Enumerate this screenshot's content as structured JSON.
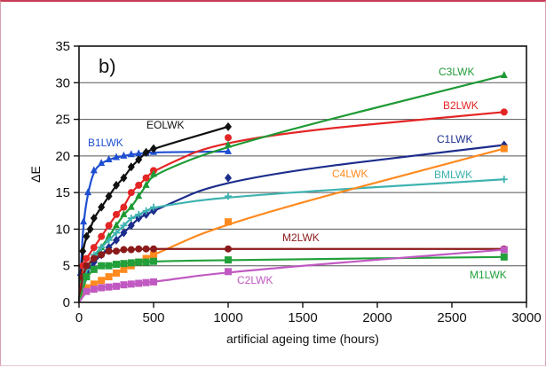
{
  "chart_data": {
    "type": "line",
    "panel_label": "b)",
    "xlabel": "artificial ageing time (hours)",
    "ylabel": "ΔE",
    "xlim": [
      0,
      3000
    ],
    "ylim": [
      0,
      35
    ],
    "xticks": [
      0,
      500,
      1000,
      1500,
      2000,
      2500,
      3000
    ],
    "yticks": [
      0,
      5,
      10,
      15,
      20,
      25,
      30,
      35
    ],
    "grid": "horizontal",
    "series": [
      {
        "name": "B1LWK",
        "color": "#1f4fd1",
        "marker": "triangle",
        "x": [
          0,
          10,
          30,
          60,
          100,
          150,
          200,
          250,
          300,
          350,
          400,
          450,
          500,
          1000
        ],
        "y": [
          0,
          4,
          11,
          15,
          18,
          19,
          19.5,
          19.8,
          20,
          20.2,
          20.3,
          20.4,
          20.5,
          20.6
        ]
      },
      {
        "name": "EOLWK",
        "color": "#111111",
        "marker": "diamond",
        "x": [
          0,
          25,
          50,
          75,
          100,
          150,
          200,
          250,
          300,
          350,
          400,
          450,
          500,
          1000
        ],
        "y": [
          0,
          7,
          9,
          10,
          11.5,
          13,
          14.5,
          16,
          17,
          18.5,
          19.5,
          20.5,
          21,
          24
        ]
      },
      {
        "name": "B2LWK",
        "color": "#e42525",
        "marker": "circle",
        "x": [
          0,
          25,
          50,
          100,
          150,
          200,
          250,
          300,
          350,
          400,
          450,
          500,
          1000,
          2850
        ],
        "y": [
          0,
          5,
          6,
          7.5,
          9,
          10.5,
          12,
          13,
          15,
          16,
          17,
          18,
          22.5,
          26
        ]
      },
      {
        "name": "C3LWK",
        "color": "#1f9a35",
        "marker": "triangle",
        "x": [
          0,
          25,
          50,
          100,
          150,
          200,
          250,
          300,
          350,
          400,
          450,
          500,
          1000,
          2850
        ],
        "y": [
          0,
          3,
          4.5,
          6,
          7.5,
          9,
          10.5,
          12,
          13,
          14.5,
          16,
          17.5,
          21.5,
          31
        ]
      },
      {
        "name": "C1LWK",
        "color": "#1c2d8c",
        "marker": "diamond",
        "x": [
          0,
          50,
          100,
          150,
          200,
          250,
          300,
          350,
          400,
          450,
          500,
          1000,
          2850
        ],
        "y": [
          0,
          4,
          5.5,
          6.5,
          7.5,
          8.5,
          9.5,
          10.5,
          11.5,
          12,
          12.5,
          17,
          21.5
        ]
      },
      {
        "name": "BMLWK",
        "color": "#3fb3b0",
        "marker": "plus",
        "x": [
          0,
          50,
          100,
          150,
          200,
          250,
          300,
          350,
          400,
          450,
          500,
          1000,
          2850
        ],
        "y": [
          0,
          4.5,
          6.5,
          7.5,
          8.5,
          9.5,
          10.5,
          11.5,
          12,
          12.5,
          13,
          14.5,
          16.8
        ]
      },
      {
        "name": "C4LWK",
        "color": "#ff8a1f",
        "marker": "square",
        "x": [
          0,
          50,
          100,
          150,
          200,
          250,
          300,
          350,
          400,
          450,
          500,
          1000,
          2850
        ],
        "y": [
          0,
          2,
          2.5,
          3,
          3.5,
          4,
          4.5,
          5,
          5.5,
          6,
          6.5,
          11,
          21
        ]
      },
      {
        "name": "M2LWK",
        "color": "#8b1a1a",
        "marker": "circle",
        "x": [
          0,
          25,
          50,
          100,
          150,
          200,
          250,
          300,
          350,
          400,
          450,
          500,
          1000,
          2850
        ],
        "y": [
          0,
          3.5,
          5,
          6,
          6.5,
          7,
          7,
          7.2,
          7.2,
          7.3,
          7.3,
          7.3,
          7.3,
          7.3
        ]
      },
      {
        "name": "M1LWK",
        "color": "#22a03a",
        "marker": "square",
        "x": [
          0,
          50,
          100,
          150,
          200,
          250,
          300,
          350,
          400,
          450,
          500,
          1000,
          2850
        ],
        "y": [
          0,
          3.5,
          4.5,
          5,
          5,
          5.2,
          5.3,
          5.4,
          5.5,
          5.5,
          5.6,
          5.8,
          6.2
        ]
      },
      {
        "name": "C2LWK",
        "color": "#c05ac2",
        "marker": "square",
        "x": [
          0,
          50,
          100,
          150,
          200,
          250,
          300,
          350,
          400,
          450,
          500,
          1000,
          2850
        ],
        "y": [
          0,
          1.5,
          1.8,
          2,
          2.1,
          2.2,
          2.4,
          2.5,
          2.6,
          2.7,
          2.8,
          4.2,
          7.2
        ]
      }
    ]
  }
}
